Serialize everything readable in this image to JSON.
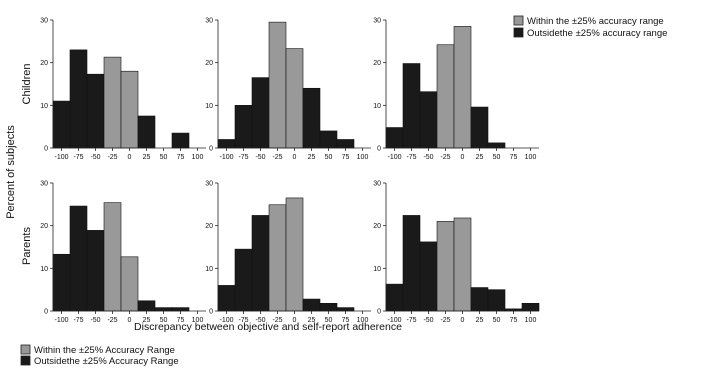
{
  "colors": {
    "within": "#999999",
    "outside": "#1a1a1a",
    "axis": "#222222"
  },
  "chart_data": {
    "type": "bar",
    "ylabel": "Percent of subjects",
    "xlabel": "Discrepancy between objective and self-report adherence",
    "x_ticks": [
      -100,
      -75,
      -50,
      -25,
      0,
      25,
      50,
      75,
      100
    ],
    "y_ticks": [
      0,
      10,
      20,
      30
    ],
    "ylim": [
      0,
      30
    ],
    "bin_width": 25,
    "within_range": [
      -25,
      25
    ],
    "legend_top": {
      "placement": "top-right",
      "entries": [
        {
          "name": "Within the ±25% accuracy range",
          "series": "within"
        },
        {
          "name": "Outsidethe ±25% accuracy range",
          "series": "outside"
        }
      ]
    },
    "legend_bottom": {
      "placement": "bottom-left",
      "entries": [
        {
          "name": "Within the ±25% Accuracy Range",
          "series": "within"
        },
        {
          "name": "Outsidethe ±25% Accuracy Range",
          "series": "outside"
        }
      ]
    },
    "rows": [
      {
        "label": "Children",
        "panels": [
          {
            "bins": [
              {
                "x": -100,
                "value": 11
              },
              {
                "x": -75,
                "value": 23
              },
              {
                "x": -50,
                "value": 17.3
              },
              {
                "x": -25,
                "value": 21.3
              },
              {
                "x": 0,
                "value": 18
              },
              {
                "x": 25,
                "value": 7.5
              },
              {
                "x": 50,
                "value": 0
              },
              {
                "x": 75,
                "value": 3.5
              }
            ]
          },
          {
            "bins": [
              {
                "x": -100,
                "value": 2
              },
              {
                "x": -75,
                "value": 10
              },
              {
                "x": -50,
                "value": 16.5
              },
              {
                "x": -25,
                "value": 29.5
              },
              {
                "x": 0,
                "value": 23.3
              },
              {
                "x": 25,
                "value": 14
              },
              {
                "x": 50,
                "value": 4
              },
              {
                "x": 75,
                "value": 2
              }
            ]
          },
          {
            "bins": [
              {
                "x": -100,
                "value": 4.8
              },
              {
                "x": -75,
                "value": 19.8
              },
              {
                "x": -50,
                "value": 13.2
              },
              {
                "x": -25,
                "value": 24.2
              },
              {
                "x": 0,
                "value": 28.5
              },
              {
                "x": 25,
                "value": 9.6
              },
              {
                "x": 50,
                "value": 1.2
              },
              {
                "x": 75,
                "value": 0
              }
            ]
          }
        ]
      },
      {
        "label": "Parents",
        "panels": [
          {
            "bins": [
              {
                "x": -100,
                "value": 13.3
              },
              {
                "x": -75,
                "value": 24.6
              },
              {
                "x": -50,
                "value": 18.9
              },
              {
                "x": -25,
                "value": 25.4
              },
              {
                "x": 0,
                "value": 12.7
              },
              {
                "x": 25,
                "value": 2.4
              },
              {
                "x": 50,
                "value": 0.8
              },
              {
                "x": 75,
                "value": 0.8
              }
            ]
          },
          {
            "bins": [
              {
                "x": -100,
                "value": 6
              },
              {
                "x": -75,
                "value": 14.5
              },
              {
                "x": -50,
                "value": 22.4
              },
              {
                "x": -25,
                "value": 24.9
              },
              {
                "x": 0,
                "value": 26.5
              },
              {
                "x": 25,
                "value": 2.8
              },
              {
                "x": 50,
                "value": 1.8
              },
              {
                "x": 75,
                "value": 0.8
              }
            ]
          },
          {
            "bins": [
              {
                "x": -100,
                "value": 6.3
              },
              {
                "x": -75,
                "value": 22.4
              },
              {
                "x": -50,
                "value": 16.2
              },
              {
                "x": -25,
                "value": 21
              },
              {
                "x": 0,
                "value": 21.8
              },
              {
                "x": 25,
                "value": 5.5
              },
              {
                "x": 50,
                "value": 5
              },
              {
                "x": 75,
                "value": 0.5
              },
              {
                "x": 100,
                "value": 1.8
              }
            ]
          }
        ]
      }
    ]
  }
}
